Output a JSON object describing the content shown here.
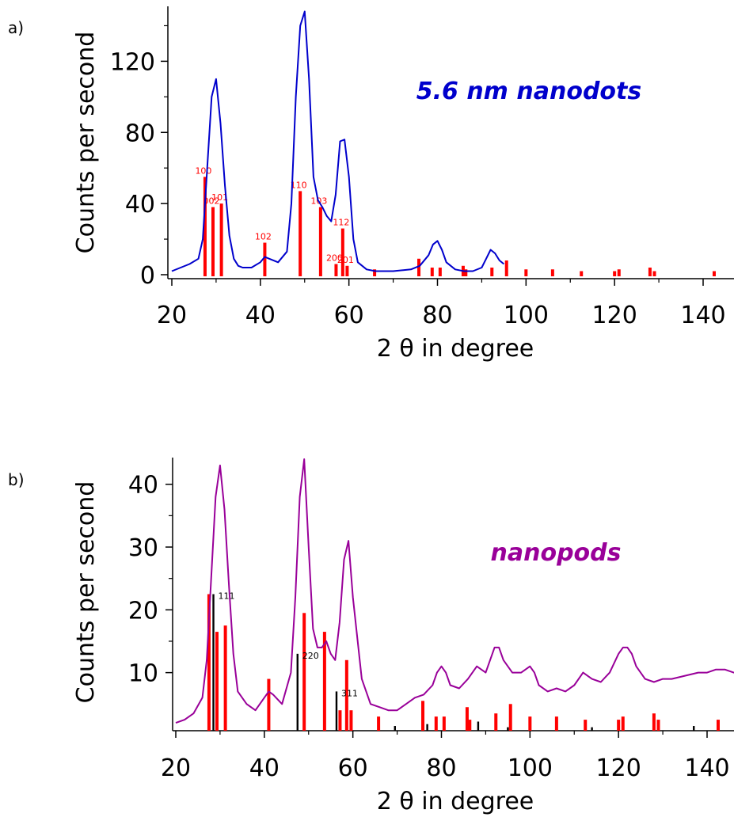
{
  "chart_data": [
    {
      "type": "line",
      "panel_label": "a)",
      "xlabel": "2 θ in degree",
      "ylabel": "Counts per second",
      "xlim": [
        20,
        150
      ],
      "ylim": [
        0,
        150
      ],
      "xticks": [
        20,
        40,
        60,
        80,
        100,
        120,
        140
      ],
      "yticks": [
        0,
        40,
        80,
        120
      ],
      "annotation": "5.6 nm nanodots",
      "series_color": "#0000cc",
      "reference_color": "#ff0000",
      "series": [
        {
          "x": [
            20,
            22,
            24,
            26,
            27,
            28,
            29,
            30,
            31,
            32,
            33,
            34,
            35,
            36,
            38,
            40,
            41,
            42,
            44,
            46,
            47,
            48,
            49,
            50,
            51,
            52,
            53,
            54,
            55,
            56,
            57,
            58,
            59,
            60,
            61,
            62,
            64,
            66,
            70,
            74,
            76,
            78,
            79,
            80,
            81,
            82,
            84,
            86,
            88,
            90,
            91,
            92,
            93,
            94,
            95
          ],
          "y": [
            2,
            4,
            6,
            9,
            20,
            60,
            100,
            110,
            85,
            50,
            22,
            9,
            5,
            4,
            4,
            7,
            10,
            9,
            7,
            13,
            40,
            100,
            140,
            148,
            110,
            55,
            42,
            38,
            33,
            30,
            45,
            75,
            76,
            55,
            20,
            7,
            3,
            2,
            2,
            3,
            5,
            11,
            17,
            19,
            14,
            7,
            3,
            2,
            2,
            4,
            9,
            14,
            12,
            8,
            6
          ]
        }
      ],
      "reference_peaks": [
        {
          "x": 27.5,
          "y": 55,
          "label": "100"
        },
        {
          "x": 29.3,
          "y": 38,
          "label": "002"
        },
        {
          "x": 31.2,
          "y": 40,
          "label": "101"
        },
        {
          "x": 41.0,
          "y": 18,
          "label": "102"
        },
        {
          "x": 49.0,
          "y": 47,
          "label": "110"
        },
        {
          "x": 53.6,
          "y": 38,
          "label": "103"
        },
        {
          "x": 57.1,
          "y": 6,
          "label": "200"
        },
        {
          "x": 58.6,
          "y": 26,
          "label": "112"
        },
        {
          "x": 59.6,
          "y": 5,
          "label": "201"
        },
        {
          "x": 65.8,
          "y": 3,
          "label": ""
        },
        {
          "x": 75.8,
          "y": 9,
          "label": ""
        },
        {
          "x": 78.8,
          "y": 4,
          "label": ""
        },
        {
          "x": 80.6,
          "y": 4,
          "label": ""
        },
        {
          "x": 85.8,
          "y": 5,
          "label": ""
        },
        {
          "x": 86.4,
          "y": 3,
          "label": ""
        },
        {
          "x": 92.3,
          "y": 4,
          "label": ""
        },
        {
          "x": 95.6,
          "y": 8,
          "label": ""
        },
        {
          "x": 100.0,
          "y": 3,
          "label": ""
        },
        {
          "x": 106.0,
          "y": 3,
          "label": ""
        },
        {
          "x": 112.5,
          "y": 2,
          "label": ""
        },
        {
          "x": 120.0,
          "y": 2,
          "label": ""
        },
        {
          "x": 121.0,
          "y": 3,
          "label": ""
        },
        {
          "x": 128.0,
          "y": 4,
          "label": ""
        },
        {
          "x": 129.0,
          "y": 2,
          "label": ""
        },
        {
          "x": 142.5,
          "y": 2,
          "label": ""
        }
      ]
    },
    {
      "type": "line",
      "panel_label": "b)",
      "xlabel": "2 θ in degree",
      "ylabel": "Counts per second",
      "xlim": [
        20,
        150
      ],
      "ylim": [
        1,
        44
      ],
      "xticks": [
        20,
        40,
        60,
        80,
        100,
        120,
        140
      ],
      "yticks": [
        10,
        20,
        30,
        40
      ],
      "annotation": "nanopods",
      "series_color": "#990099",
      "reference_color": "#ff0000",
      "reference2_color": "#000000",
      "series": [
        {
          "x": [
            20,
            22,
            24,
            26,
            27,
            28,
            29,
            30,
            31,
            32,
            33,
            34,
            36,
            38,
            40,
            41,
            42,
            44,
            46,
            47,
            48,
            49,
            50,
            51,
            52,
            53,
            54,
            55,
            56,
            57,
            58,
            59,
            60,
            62,
            64,
            66,
            68,
            70,
            72,
            74,
            76,
            78,
            79,
            80,
            81,
            82,
            84,
            86,
            88,
            90,
            92,
            93,
            94,
            96,
            98,
            100,
            101,
            102,
            104,
            106,
            108,
            110,
            112,
            113,
            114,
            116,
            118,
            120,
            121,
            122,
            123,
            124,
            126,
            128,
            130,
            132,
            135,
            138,
            140,
            142,
            144,
            146,
            148,
            150
          ],
          "y": [
            2,
            2.5,
            3.5,
            6,
            12,
            25,
            38,
            43,
            36,
            24,
            13,
            7,
            5,
            4,
            6,
            7,
            6.5,
            5,
            10,
            22,
            38,
            44,
            30,
            17,
            14,
            14,
            15,
            13,
            12,
            18,
            28,
            31,
            22,
            9,
            5,
            4.5,
            4,
            4,
            5,
            6,
            6.5,
            8,
            10,
            11,
            10,
            8,
            7.5,
            9,
            11,
            10,
            14,
            14,
            12,
            10,
            10,
            11,
            10,
            8,
            7,
            7.5,
            7,
            8,
            10,
            9.5,
            9,
            8.5,
            10,
            13,
            14,
            14,
            13,
            11,
            9,
            8.5,
            9,
            9,
            9.5,
            10,
            10,
            10.5,
            10.5,
            10,
            10,
            10
          ]
        }
      ],
      "reference_peaks": [
        {
          "x": 27.5,
          "y": 22.5,
          "label": ""
        },
        {
          "x": 29.3,
          "y": 16.5,
          "label": ""
        },
        {
          "x": 31.2,
          "y": 17.5,
          "label": ""
        },
        {
          "x": 41.0,
          "y": 9,
          "label": ""
        },
        {
          "x": 49.0,
          "y": 19.5,
          "label": ""
        },
        {
          "x": 53.6,
          "y": 16.5,
          "label": ""
        },
        {
          "x": 57.1,
          "y": 4,
          "label": ""
        },
        {
          "x": 58.6,
          "y": 12,
          "label": ""
        },
        {
          "x": 59.6,
          "y": 4,
          "label": ""
        },
        {
          "x": 65.8,
          "y": 3,
          "label": ""
        },
        {
          "x": 75.8,
          "y": 5.5,
          "label": ""
        },
        {
          "x": 78.8,
          "y": 3,
          "label": ""
        },
        {
          "x": 80.6,
          "y": 3,
          "label": ""
        },
        {
          "x": 85.8,
          "y": 4.5,
          "label": ""
        },
        {
          "x": 86.4,
          "y": 2.5,
          "label": ""
        },
        {
          "x": 92.3,
          "y": 3.5,
          "label": ""
        },
        {
          "x": 95.6,
          "y": 5,
          "label": ""
        },
        {
          "x": 100.0,
          "y": 3,
          "label": ""
        },
        {
          "x": 106.0,
          "y": 3,
          "label": ""
        },
        {
          "x": 112.5,
          "y": 2.5,
          "label": ""
        },
        {
          "x": 120.0,
          "y": 2.5,
          "label": ""
        },
        {
          "x": 121.0,
          "y": 3,
          "label": ""
        },
        {
          "x": 128.0,
          "y": 3.5,
          "label": ""
        },
        {
          "x": 129.0,
          "y": 2.5,
          "label": ""
        },
        {
          "x": 142.5,
          "y": 2.5,
          "label": ""
        }
      ],
      "reference_peaks_2": [
        {
          "x": 28.5,
          "y": 22.5,
          "label": "111"
        },
        {
          "x": 47.5,
          "y": 13,
          "label": "220"
        },
        {
          "x": 56.3,
          "y": 7,
          "label": "311"
        },
        {
          "x": 69.5,
          "y": 1.5,
          "label": ""
        },
        {
          "x": 76.8,
          "y": 1.8,
          "label": ""
        },
        {
          "x": 88.3,
          "y": 2.2,
          "label": ""
        },
        {
          "x": 95.0,
          "y": 1.3,
          "label": ""
        },
        {
          "x": 114.0,
          "y": 1.3,
          "label": ""
        },
        {
          "x": 137.0,
          "y": 1.5,
          "label": ""
        }
      ]
    }
  ]
}
